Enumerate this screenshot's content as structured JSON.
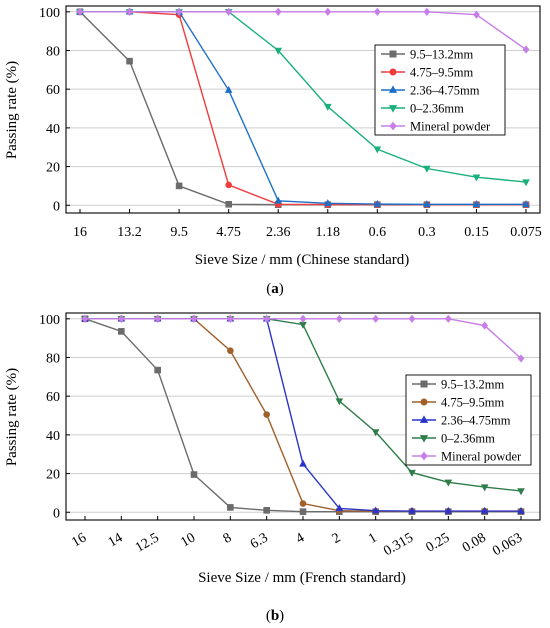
{
  "chart_data": [
    {
      "type": "line",
      "panel_label": "(a)",
      "xlabel": "Sieve Size / mm (Chinese standard)",
      "ylabel": "Passing rate (%)",
      "categories": [
        "16",
        "13.2",
        "9.5",
        "4.75",
        "2.36",
        "1.18",
        "0.6",
        "0.3",
        "0.15",
        "0.075"
      ],
      "ylim": [
        -4,
        103
      ],
      "yticks": [
        0,
        20,
        40,
        60,
        80,
        100
      ],
      "grid": "horizontal",
      "legend_position": "center-right",
      "series": [
        {
          "name": "9.5–13.2mm",
          "color": "#6b6b6b",
          "marker": "square",
          "values": [
            100,
            74.5,
            10,
            0.5,
            0.3,
            0.3,
            0.3,
            0.3,
            0.3,
            0.3
          ]
        },
        {
          "name": "4.75–9.5mm",
          "color": "#f03c3c",
          "marker": "circle",
          "values": [
            100,
            100,
            98.5,
            10.5,
            0.5,
            0.4,
            0.3,
            0.3,
            0.3,
            0.3
          ]
        },
        {
          "name": "2.36–4.75mm",
          "color": "#1f6fc9",
          "marker": "triangle-up",
          "values": [
            100,
            100,
            100,
            59.5,
            2.3,
            1.0,
            0.6,
            0.5,
            0.5,
            0.5
          ]
        },
        {
          "name": "0–2.36mm",
          "color": "#19b07a",
          "marker": "triangle-down",
          "values": [
            100,
            100,
            100,
            100,
            80,
            51,
            29,
            19,
            14.5,
            12
          ]
        },
        {
          "name": "Mineral powder",
          "color": "#c77ee8",
          "marker": "diamond",
          "values": [
            100,
            100,
            100,
            100,
            100,
            100,
            100,
            100,
            98.5,
            80.5
          ]
        }
      ]
    },
    {
      "type": "line",
      "panel_label": "(b)",
      "xlabel": "Sieve Size / mm (French standard)",
      "ylabel": "Passing rate (%)",
      "categories": [
        "16",
        "14",
        "12.5",
        "10",
        "8",
        "6.3",
        "4",
        "2",
        "1",
        "0.315",
        "0.25",
        "0.08",
        "0.063"
      ],
      "ylim": [
        -4,
        103
      ],
      "yticks": [
        0,
        20,
        40,
        60,
        80,
        100
      ],
      "grid": "horizontal",
      "legend_position": "center-right",
      "series": [
        {
          "name": "9.5–13.2mm",
          "color": "#6b6b6b",
          "marker": "square",
          "values": [
            100,
            93.5,
            73.5,
            19.5,
            2.5,
            1.0,
            0.3,
            0.3,
            0.3,
            0.3,
            0.3,
            0.3,
            0.3
          ]
        },
        {
          "name": "4.75–9.5mm",
          "color": "#a0602c",
          "marker": "circle",
          "values": [
            100,
            100,
            100,
            100,
            83.5,
            50.5,
            4.5,
            0.8,
            0.5,
            0.5,
            0.5,
            0.5,
            0.5
          ]
        },
        {
          "name": "2.36–4.75mm",
          "color": "#2a35c8",
          "marker": "triangle-up",
          "values": [
            100,
            100,
            100,
            100,
            100,
            100,
            25,
            2,
            0.8,
            0.6,
            0.6,
            0.6,
            0.6
          ]
        },
        {
          "name": "0–2.36mm",
          "color": "#2e7d4a",
          "marker": "triangle-down",
          "values": [
            100,
            100,
            100,
            100,
            100,
            100,
            97,
            57.5,
            41.5,
            20.5,
            15.5,
            13,
            11
          ]
        },
        {
          "name": "Mineral powder",
          "color": "#c77ee8",
          "marker": "diamond",
          "values": [
            100,
            100,
            100,
            100,
            100,
            100,
            100,
            100,
            100,
            100,
            100,
            96.5,
            79.5
          ]
        }
      ]
    }
  ]
}
